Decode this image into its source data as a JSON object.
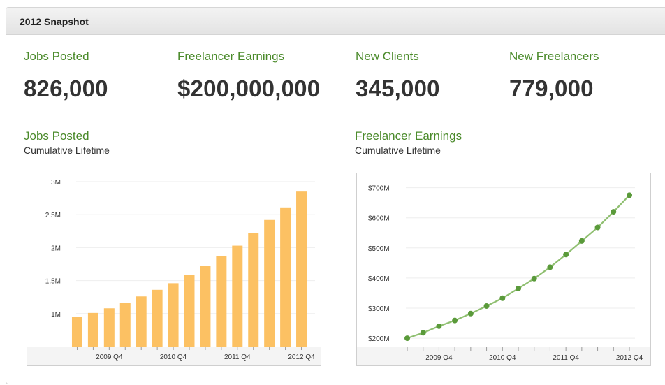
{
  "header": {
    "title": "2012 Snapshot"
  },
  "stats": [
    {
      "label": "Jobs Posted",
      "value": "826,000"
    },
    {
      "label": "Freelancer Earnings",
      "value": "$200,000,000"
    },
    {
      "label": "New Clients",
      "value": "345,000"
    },
    {
      "label": "New Freelancers",
      "value": "779,000"
    }
  ],
  "charts": [
    {
      "title": "Jobs Posted",
      "subtitle": "Cumulative Lifetime"
    },
    {
      "title": "Freelancer Earnings",
      "subtitle": "Cumulative Lifetime"
    }
  ],
  "colors": {
    "accent_green": "#4a8a2a",
    "bar_fill": "#fcc163",
    "line_green": "#8fbf70",
    "point_green": "#5a9a3a"
  },
  "chart_data": [
    {
      "type": "bar",
      "title": "Jobs Posted",
      "subtitle": "Cumulative Lifetime",
      "categories": [
        "2009 Q2",
        "2009 Q3",
        "2009 Q4",
        "2010 Q1",
        "2010 Q2",
        "2010 Q3",
        "2010 Q4",
        "2011 Q1",
        "2011 Q2",
        "2011 Q3",
        "2011 Q4",
        "2012 Q1",
        "2012 Q2",
        "2012 Q3",
        "2012 Q4"
      ],
      "values": [
        950000,
        1010000,
        1080000,
        1160000,
        1260000,
        1360000,
        1460000,
        1590000,
        1720000,
        1870000,
        2030000,
        2220000,
        2420000,
        2610000,
        2850000
      ],
      "ylim": [
        500000,
        3000000
      ],
      "yticks": [
        1000000,
        1500000,
        2000000,
        2500000,
        3000000
      ],
      "ytick_labels": [
        "1M",
        "1.5M",
        "2M",
        "2.5M",
        "3M"
      ],
      "xtick_labels": [
        "2009 Q4",
        "2010 Q4",
        "2011 Q4",
        "2012 Q4"
      ],
      "xtick_categories": [
        "2009 Q4",
        "2010 Q4",
        "2011 Q4",
        "2012 Q4"
      ],
      "grid": true
    },
    {
      "type": "line",
      "title": "Freelancer Earnings",
      "subtitle": "Cumulative Lifetime",
      "x": [
        "2009 Q2",
        "2009 Q3",
        "2009 Q4",
        "2010 Q1",
        "2010 Q2",
        "2010 Q3",
        "2010 Q4",
        "2011 Q1",
        "2011 Q2",
        "2011 Q3",
        "2011 Q4",
        "2012 Q1",
        "2012 Q2",
        "2012 Q3",
        "2012 Q4"
      ],
      "values": [
        200,
        218,
        240,
        259,
        282,
        307,
        333,
        365,
        398,
        436,
        478,
        523,
        568,
        620,
        675
      ],
      "ylim": [
        170,
        720
      ],
      "yticks": [
        200,
        300,
        400,
        500,
        600,
        700
      ],
      "ytick_labels": [
        "$200M",
        "$300M",
        "$400M",
        "$500M",
        "$600M",
        "$700M"
      ],
      "xtick_labels": [
        "2009 Q4",
        "2010 Q4",
        "2011 Q4",
        "2012 Q4"
      ],
      "xtick_categories": [
        "2009 Q4",
        "2010 Q4",
        "2011 Q4",
        "2012 Q4"
      ],
      "grid": true
    }
  ]
}
